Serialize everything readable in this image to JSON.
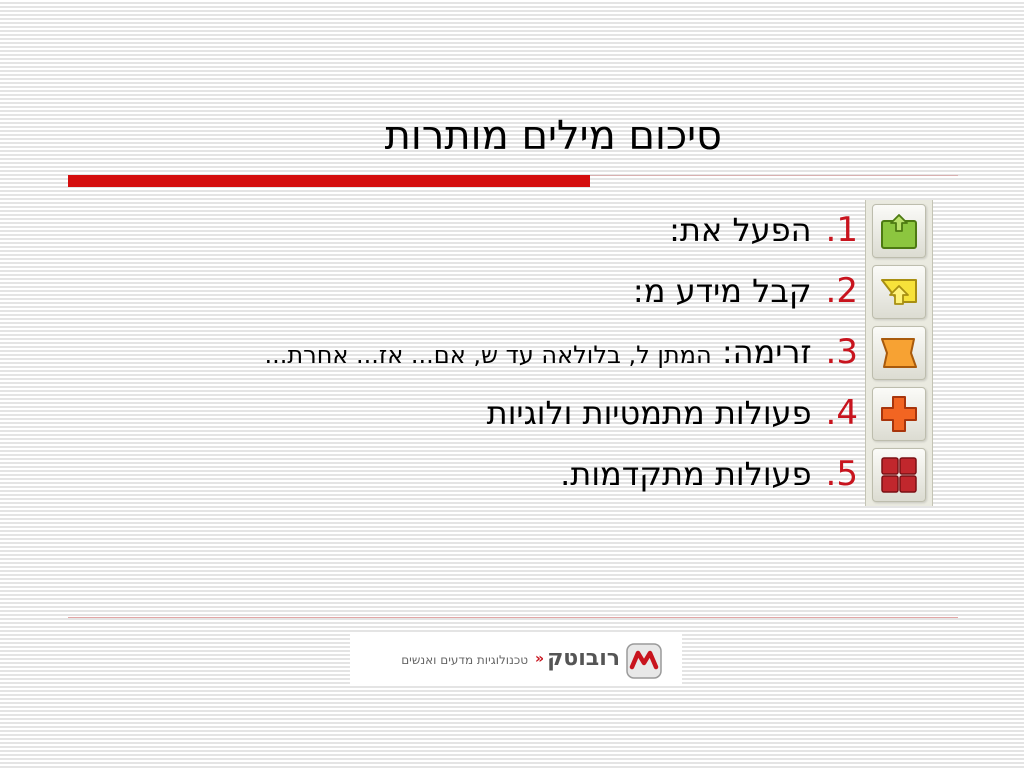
{
  "slide": {
    "title": "סיכום מילים מותרות"
  },
  "items": [
    {
      "number": "1.",
      "text": "הפעל את:",
      "sub": ""
    },
    {
      "number": "2.",
      "text": "קבל מידע מ:",
      "sub": ""
    },
    {
      "number": "3.",
      "text": "זרימה:",
      "sub": "המתן ל, בלולאה עד ש, אם... אז... אחרת..."
    },
    {
      "number": "4.",
      "text": "פעולות מתמטיות ולוגיות",
      "sub": ""
    },
    {
      "number": "5.",
      "text": "פעולות מתקדמות.",
      "sub": ""
    }
  ],
  "icons": [
    {
      "name": "green-box-arrow-icon",
      "color": "#8cc63f"
    },
    {
      "name": "yellow-arrow-up-icon",
      "color": "#f7e23a"
    },
    {
      "name": "orange-flag-icon",
      "color": "#f7a233"
    },
    {
      "name": "orange-cross-icon",
      "color": "#f26522"
    },
    {
      "name": "red-grid-icon",
      "color": "#c1272d"
    }
  ],
  "logo": {
    "name": "רובוטק",
    "chevrons": "«",
    "tagline": "טכנולוגיות מדעים ואנשים"
  },
  "colors": {
    "accent": "#d40e0e",
    "number": "#c8141e"
  }
}
